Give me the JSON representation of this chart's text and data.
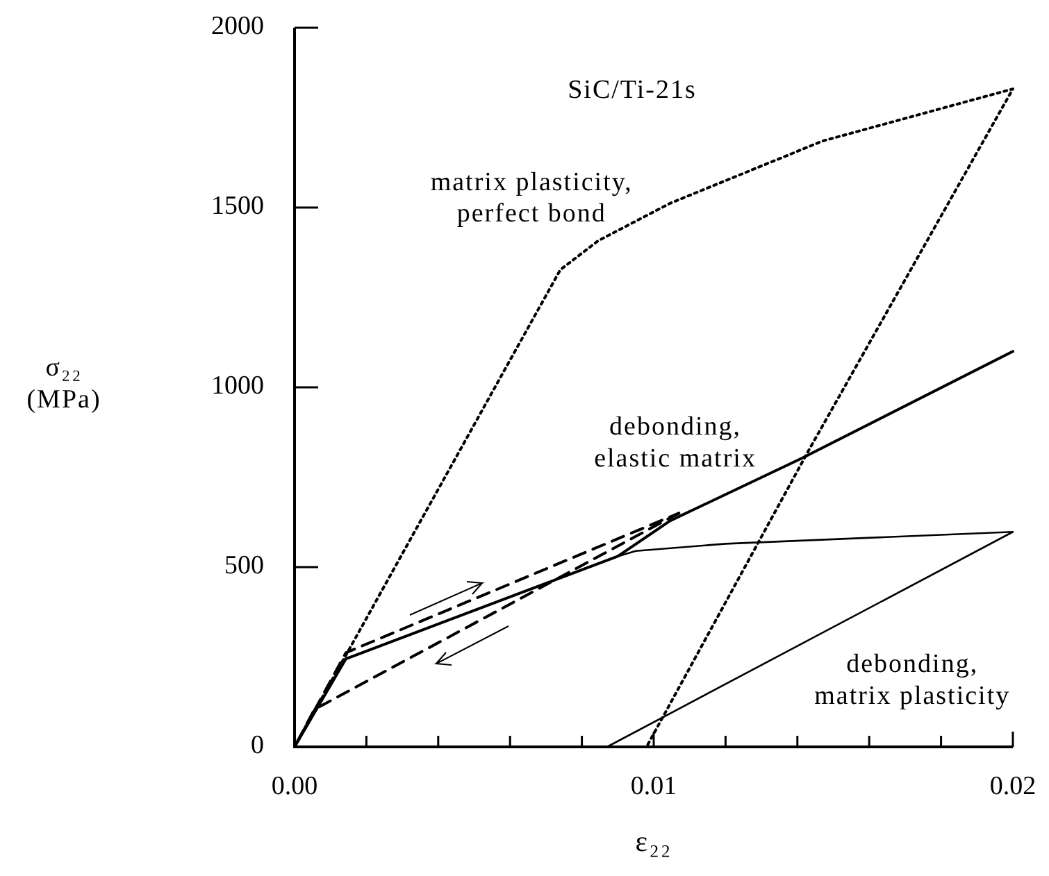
{
  "chart_data": {
    "type": "line",
    "xlabel": "ε₂₂",
    "ylabel": "σ₂₂\n(MPa)",
    "xlim": [
      0,
      0.02
    ],
    "ylim": [
      0,
      2000
    ],
    "xticks": [
      {
        "value": 0,
        "label": "0.00"
      },
      {
        "value": 0.002,
        "label": null
      },
      {
        "value": 0.004,
        "label": null
      },
      {
        "value": 0.006,
        "label": null
      },
      {
        "value": 0.008,
        "label": null
      },
      {
        "value": 0.01,
        "label": "0.01"
      },
      {
        "value": 0.012,
        "label": null
      },
      {
        "value": 0.014,
        "label": null
      },
      {
        "value": 0.016,
        "label": null
      },
      {
        "value": 0.018,
        "label": null
      },
      {
        "value": 0.02,
        "label": "0.02"
      }
    ],
    "yticks": [
      0,
      500,
      1000,
      1500,
      2000
    ],
    "grid": false,
    "series": [
      {
        "color": "#000000",
        "line_style": "dotted",
        "x": [
          0,
          0.00143,
          0.0074,
          0.00846,
          0.01046,
          0.0147,
          0.02,
          0.0143,
          0.0098
        ],
        "values": [
          0,
          255,
          1327,
          1408,
          1512,
          1685,
          1830,
          822,
          0
        ]
      },
      {
        "color": "#000000",
        "line_style": "solid",
        "x": [
          0,
          0.00143,
          0.009,
          0.01046,
          0.01413,
          0.02
        ],
        "values": [
          0,
          245,
          530,
          629,
          803,
          1100
        ]
      },
      {
        "color": "#000000",
        "line_style": "solid",
        "x": [
          0,
          0.00143,
          0.009,
          0.0095,
          0.012,
          0.02,
          0.0087
        ],
        "values": [
          0,
          245,
          530,
          545,
          565,
          598,
          0
        ]
      },
      {
        "color": "#000000",
        "line_style": "dashed",
        "x": [
          0,
          0.00143,
          0.0107
        ],
        "values": [
          0,
          262,
          650
        ]
      },
      {
        "color": "#000000",
        "line_style": "dashed",
        "x": [
          0.0107,
          0.00055,
          0
        ],
        "values": [
          650,
          104,
          0
        ]
      }
    ],
    "annotations": [
      "SiC/Ti-21s",
      "matrix plasticity,\nperfect bond",
      "debonding,\nelastic matrix",
      "debonding,\nmatrix plasticity"
    ]
  }
}
